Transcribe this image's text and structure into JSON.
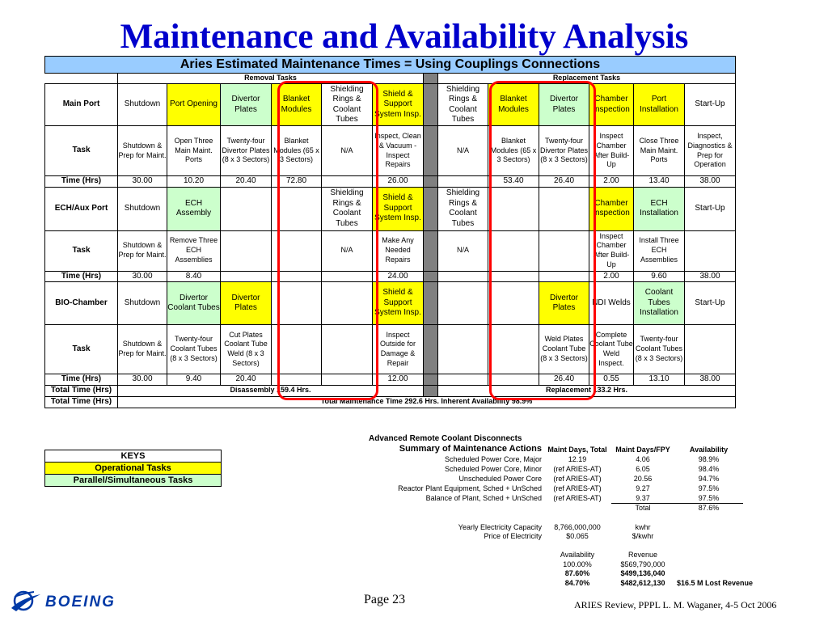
{
  "title": "Maintenance and Availability Analysis",
  "table": {
    "heading": "Aries Estimated Maintenance Times = Using Couplings Connections",
    "removal_header": "Removal Tasks",
    "replacement_header": "Replacement Tasks",
    "main_port": {
      "label": "Main Port",
      "tasks": [
        "Shutdown",
        "Port Opening",
        "Divertor Plates",
        "Blanket Modules",
        "Shielding Rings & Coolant Tubes",
        "Shield & Support System Insp.",
        "Shielding Rings & Coolant Tubes",
        "Blanket Modules",
        "Divertor Plates",
        "Chamber Inspection",
        "Port Installation",
        "Start-Up"
      ],
      "task_label": "Task",
      "details": [
        "Shutdown & Prep for Maint.",
        "Open Three Main Maint. Ports",
        "Twenty-four Divertor Plates (8 x 3 Sectors)",
        "Blanket Modules (65 x 3 Sectors)",
        "N/A",
        "Inspect, Clean & Vacuum - Inspect Repairs",
        "N/A",
        "Blanket Modules (65 x 3 Sectors)",
        "Twenty-four Divertor Plates (8 x 3 Sectors)",
        "Inspect Chamber After Build-Up",
        "Close Three Main Maint. Ports",
        "Inspect, Diagnostics & Prep for Operation"
      ],
      "time_label": "Time (Hrs)",
      "times": [
        "30.00",
        "10.20",
        "20.40",
        "72.80",
        "",
        "26.00",
        "",
        "53.40",
        "26.40",
        "2.00",
        "13.40",
        "38.00"
      ]
    },
    "ech_port": {
      "label": "ECH/Aux Port",
      "tasks": [
        "Shutdown",
        "ECH Assembly",
        "",
        "",
        "Shielding Rings & Coolant Tubes",
        "Shield & Support System Insp.",
        "Shielding Rings & Coolant Tubes",
        "",
        "",
        "Chamber Inspection",
        "ECH Installation",
        "Start-Up"
      ],
      "task_label": "Task",
      "details": [
        "Shutdown & Prep for Maint.",
        "Remove Three ECH Assemblies",
        "",
        "",
        "N/A",
        "Make Any Needed Repairs",
        "N/A",
        "",
        "",
        "Inspect Chamber After Build-Up",
        "Install Three ECH Assemblies",
        ""
      ],
      "time_label": "Time (Hrs)",
      "times": [
        "30.00",
        "8.40",
        "",
        "",
        "",
        "24.00",
        "",
        "",
        "",
        "2.00",
        "9.60",
        "38.00"
      ]
    },
    "bio_chamber": {
      "label": "BIO-Chamber",
      "tasks": [
        "Shutdown",
        "Divertor Coolant Tubes",
        "Divertor Plates",
        "",
        "",
        "Shield & Support System Insp.",
        "",
        "",
        "Divertor Plates",
        "NDI Welds",
        "Coolant Tubes Installation",
        "Start-Up"
      ],
      "task_label": "Task",
      "details": [
        "Shutdown & Prep for Maint.",
        "Twenty-four Coolant Tubes (8 x 3 Sectors)",
        "Cut Plates Coolant Tube Weld (8 x 3 Sectors)",
        "",
        "",
        "Inspect Outside for Damage & Repair",
        "",
        "",
        "Weld Plates Coolant Tube (8 x 3 Sectors)",
        "Complete Coolant Tube Weld Inspect.",
        "Twenty-four Coolant Tubes (8 x 3 Sectors)",
        ""
      ],
      "time_label": "Time (Hrs)",
      "times": [
        "30.00",
        "9.40",
        "20.40",
        "",
        "",
        "12.00",
        "",
        "",
        "26.40",
        "0.55",
        "13.10",
        "38.00"
      ]
    },
    "total1_label": "Total Time (Hrs)",
    "disassembly": "Disassembly 159.4 Hrs.",
    "replacement": "Replacement 133.2 Hrs.",
    "total2_label": "Total Time (Hrs)",
    "total_maint": "Total Maintenance Time 292.6 Hrs.   Inherent Availability 98.9%"
  },
  "keys": {
    "title": "KEYS",
    "operational": "Operational Tasks",
    "parallel": "Parallel/Simultaneous Tasks"
  },
  "summary": {
    "heading": "Advanced Remote Coolant Disconnects",
    "subheading": "Summary of Maintenance Actions",
    "col_days": "Maint Days, Total",
    "col_fpy": "Maint Days/FPY",
    "col_avail": "Availability",
    "rows": [
      {
        "name": "Scheduled Power Core, Major",
        "days": "12.19",
        "fpy": "4.06",
        "avail": "98.9%"
      },
      {
        "name": "Scheduled Power Core, Minor",
        "days": "(ref ARIES-AT)",
        "fpy": "6.05",
        "avail": "98.4%"
      },
      {
        "name": "Unscheduled Power Core",
        "days": "(ref ARIES-AT)",
        "fpy": "20.56",
        "avail": "94.7%"
      },
      {
        "name": "Reactor Plant Equipment, Sched + UnSched",
        "days": "(ref ARIES-AT)",
        "fpy": "9.27",
        "avail": "97.5%"
      },
      {
        "name": "Balance of Plant, Sched + UnSched",
        "days": "(ref ARIES-AT)",
        "fpy": "9.37",
        "avail": "97.5%"
      }
    ],
    "total_label": "Total",
    "total_avail": "87.6%",
    "capacity_label": "Yearly Electricity Capacity",
    "capacity_value": "8,766,000,000",
    "capacity_unit": "kwhr",
    "price_label": "Price of  Electricity",
    "price_value": "$0.065",
    "price_unit": "$/kwhr",
    "avail_header": "Availability",
    "revenue_header": "Revenue",
    "revenue_rows": [
      {
        "avail": "100.00%",
        "revenue": "$569,790,000"
      },
      {
        "avail": "87.60%",
        "revenue": "$499,136,040"
      },
      {
        "avail": "84.70%",
        "revenue": "$482,612,130"
      }
    ],
    "lost_revenue": "$16.5 M Lost Revenue"
  },
  "footer": {
    "page": "Page 23",
    "right": "ARIES Review, PPPL   L. M. Waganer, 4-5 Oct 2006",
    "logo_text": "BOEING"
  },
  "colors": {
    "title": "#0000cc",
    "header_bg": "#99ccff",
    "operational": "#ffff00",
    "parallel": "#ccffcc",
    "highlight": "#ff0000"
  }
}
